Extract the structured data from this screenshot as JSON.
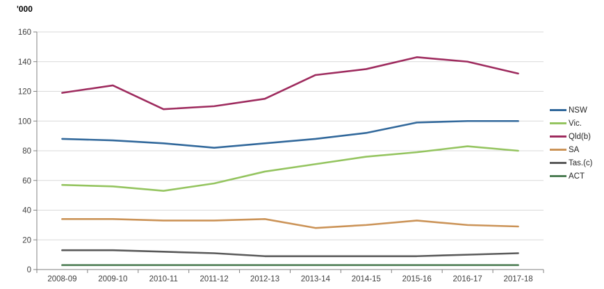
{
  "chart_data": {
    "type": "line",
    "ylabel": "'000",
    "xlabel": "",
    "ylim": [
      0,
      160
    ],
    "ytick_step": 20,
    "grid": true,
    "legend_position": "right",
    "categories": [
      "2008-09",
      "2009-10",
      "2010-11",
      "2011-12",
      "2012-13",
      "2013-14",
      "2014-15",
      "2015-16",
      "2016-17",
      "2017-18"
    ],
    "series": [
      {
        "name": "NSW",
        "color": "#31689B",
        "values": [
          88,
          87,
          85,
          82,
          85,
          88,
          92,
          99,
          100,
          100
        ]
      },
      {
        "name": "Vic.",
        "color": "#94C45F",
        "values": [
          57,
          56,
          53,
          58,
          66,
          71,
          76,
          79,
          83,
          80
        ]
      },
      {
        "name": "Qld(b)",
        "color": "#9E2B5E",
        "values": [
          119,
          124,
          108,
          110,
          115,
          131,
          135,
          143,
          140,
          132
        ]
      },
      {
        "name": "SA",
        "color": "#CB9357",
        "values": [
          34,
          34,
          33,
          33,
          34,
          28,
          30,
          33,
          30,
          29
        ]
      },
      {
        "name": "Tas.(c)",
        "color": "#595959",
        "values": [
          13,
          13,
          12,
          11,
          9,
          9,
          9,
          9,
          10,
          11
        ]
      },
      {
        "name": "ACT",
        "color": "#4E7E55",
        "values": [
          3,
          3,
          3,
          3,
          3,
          3,
          3,
          3,
          3,
          3
        ]
      }
    ],
    "colors": {
      "grid": "#D9D9D9",
      "axis": "#808080",
      "text": "#404040"
    }
  }
}
